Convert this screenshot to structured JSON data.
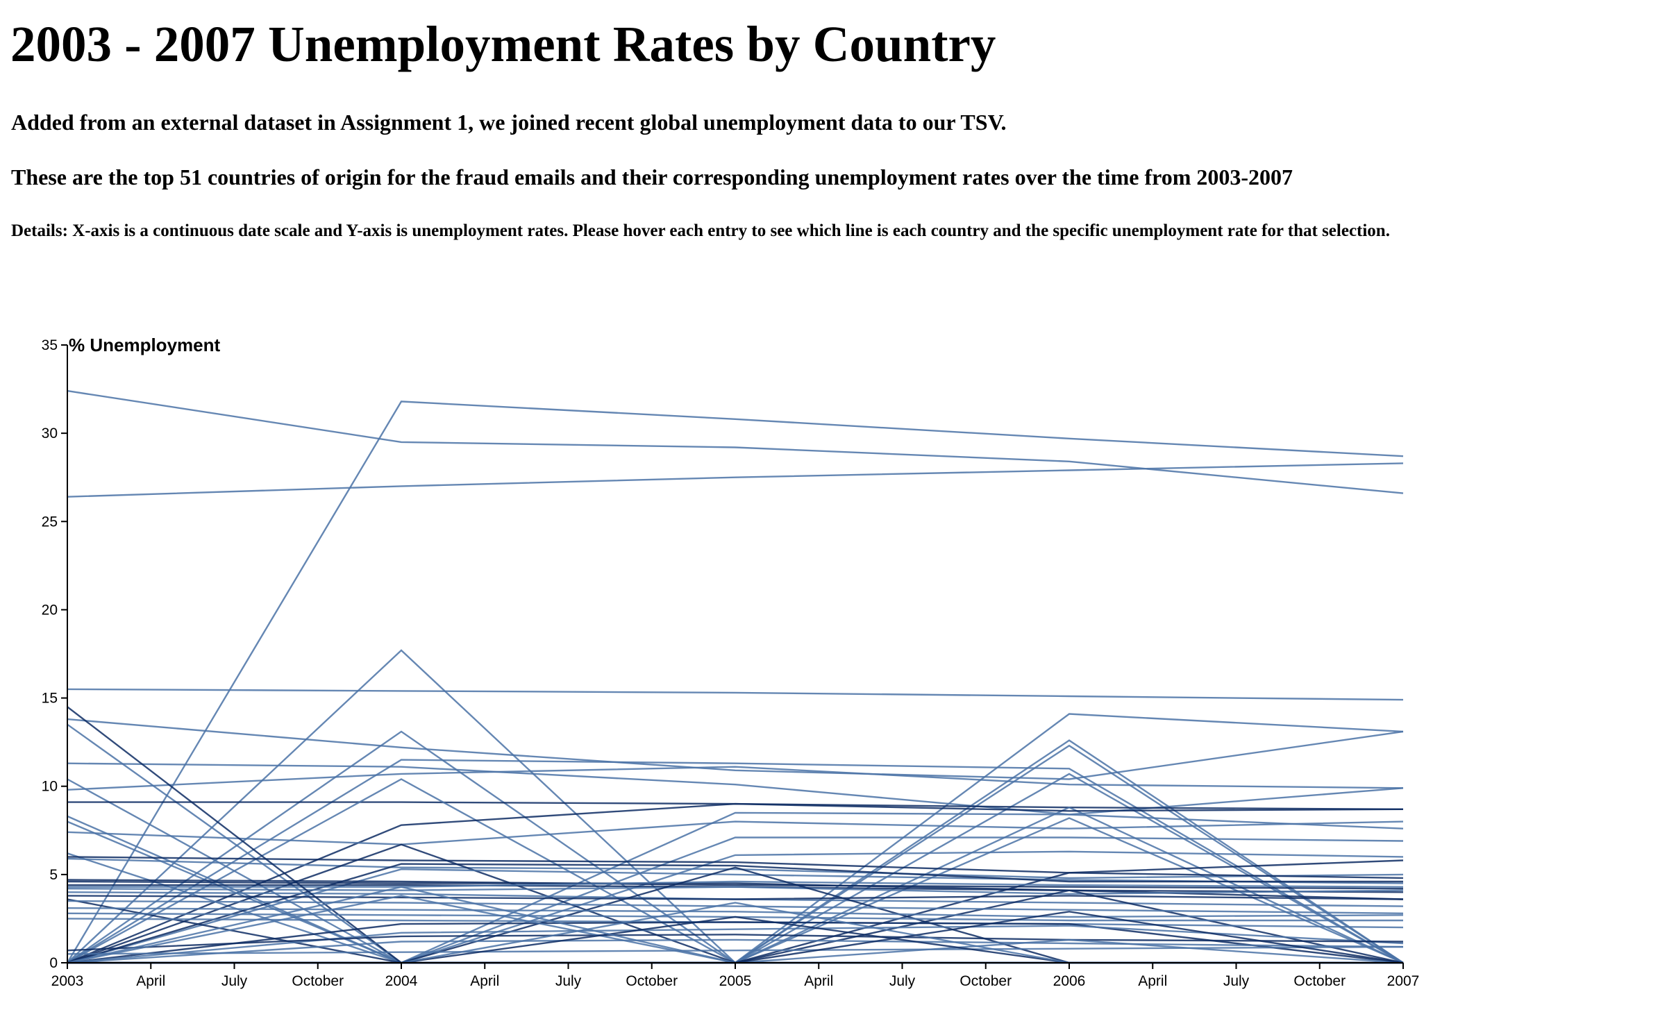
{
  "header": {
    "title": "2003 - 2007 Unemployment Rates by Country",
    "subtitle1": "Added from an external dataset in Assignment 1, we joined recent global unemployment data to our TSV.",
    "subtitle2": "These are the top 51 countries of origin for the fraud emails and their corresponding unemployment rates over the time from 2003-2007",
    "details": "Details: X-axis is a continuous date scale and Y-axis is unemployment rates. Please hover each entry to see which line is each country and the specific unemployment rate for that selection."
  },
  "chart_data": {
    "type": "line",
    "title": "",
    "xlabel": "",
    "ylabel": "% Unemployment",
    "x": [
      2003,
      2004,
      2005,
      2006,
      2007
    ],
    "x_ticks": [
      "2003",
      "April",
      "July",
      "October",
      "2004",
      "April",
      "July",
      "October",
      "2005",
      "April",
      "July",
      "October",
      "2006",
      "April",
      "July",
      "October",
      "2007"
    ],
    "xlim": [
      2003,
      2007
    ],
    "ylim": [
      0,
      35
    ],
    "y_ticks": [
      0,
      5,
      10,
      15,
      20,
      25,
      30,
      35
    ],
    "grid": false,
    "colors": {
      "line_light": "#4a72a6",
      "line_dark": "#0d2b63",
      "axis": "#000000"
    },
    "series": [
      {
        "values": [
          32.4,
          29.5,
          29.2,
          28.4,
          26.6
        ],
        "shade": "light"
      },
      {
        "values": [
          0,
          31.8,
          30.8,
          29.7,
          28.7
        ],
        "shade": "light"
      },
      {
        "values": [
          26.4,
          27.0,
          27.5,
          27.9,
          28.3
        ],
        "shade": "light"
      },
      {
        "values": [
          15.5,
          15.4,
          15.3,
          15.1,
          14.9
        ],
        "shade": "light"
      },
      {
        "values": [
          13.8,
          12.2,
          10.9,
          10.4,
          13.1
        ],
        "shade": "light"
      },
      {
        "values": [
          0,
          17.7,
          0,
          14.1,
          13.1
        ],
        "shade": "light"
      },
      {
        "values": [
          13.5,
          0,
          0,
          12.6,
          0
        ],
        "shade": "light"
      },
      {
        "values": [
          0,
          13.1,
          0,
          12.3,
          0
        ],
        "shade": "light"
      },
      {
        "values": [
          11.3,
          11.1,
          10.1,
          8.4,
          9.9
        ],
        "shade": "light"
      },
      {
        "values": [
          0,
          11.5,
          11.3,
          11.0,
          0
        ],
        "shade": "light"
      },
      {
        "values": [
          10.4,
          0,
          0,
          10.7,
          0
        ],
        "shade": "light"
      },
      {
        "values": [
          9.8,
          10.7,
          11.1,
          10.1,
          9.9
        ],
        "shade": "light"
      },
      {
        "values": [
          9.1,
          9.1,
          9.0,
          8.8,
          8.7
        ],
        "shade": "dark"
      },
      {
        "values": [
          0,
          10.4,
          0,
          8.8,
          0
        ],
        "shade": "light"
      },
      {
        "values": [
          0,
          7.8,
          9.0,
          8.6,
          8.7
        ],
        "shade": "dark"
      },
      {
        "values": [
          8.3,
          0,
          8.5,
          8.4,
          7.6
        ],
        "shade": "light"
      },
      {
        "values": [
          8.0,
          0,
          0,
          8.2,
          0
        ],
        "shade": "light"
      },
      {
        "values": [
          7.4,
          6.7,
          8.0,
          7.6,
          8.0
        ],
        "shade": "light"
      },
      {
        "values": [
          0,
          0,
          7.1,
          7.1,
          6.9
        ],
        "shade": "light"
      },
      {
        "values": [
          6.2,
          0,
          6.1,
          6.3,
          6.0
        ],
        "shade": "light"
      },
      {
        "values": [
          6.0,
          5.8,
          5.7,
          5.1,
          5.8
        ],
        "shade": "dark"
      },
      {
        "values": [
          5.9,
          5.4,
          5.3,
          4.8,
          5.0
        ],
        "shade": "light"
      },
      {
        "values": [
          0,
          6.7,
          0,
          5.1,
          4.8
        ],
        "shade": "dark"
      },
      {
        "values": [
          0,
          5.3,
          5.0,
          4.7,
          4.5
        ],
        "shade": "light"
      },
      {
        "values": [
          0,
          5.6,
          5.5,
          4.6,
          4.6
        ],
        "shade": "dark"
      },
      {
        "values": [
          4.7,
          4.6,
          4.4,
          4.3,
          4.2
        ],
        "shade": "dark"
      },
      {
        "values": [
          4.6,
          4.5,
          4.5,
          4.1,
          3.6
        ],
        "shade": "dark"
      },
      {
        "values": [
          4.4,
          4.4,
          4.3,
          4.1,
          4.0
        ],
        "shade": "dark"
      },
      {
        "values": [
          4.3,
          4.3,
          4.6,
          4.4,
          4.3
        ],
        "shade": "light"
      },
      {
        "values": [
          4.2,
          4.1,
          4.3,
          3.9,
          4.1
        ],
        "shade": "light"
      },
      {
        "values": [
          4.0,
          3.9,
          3.6,
          3.4,
          3.2
        ],
        "shade": "light"
      },
      {
        "values": [
          3.8,
          3.7,
          3.6,
          3.8,
          3.6
        ],
        "shade": "dark"
      },
      {
        "values": [
          3.6,
          0,
          0,
          4.1,
          0
        ],
        "shade": "dark"
      },
      {
        "values": [
          14.5,
          0,
          0,
          0,
          0
        ],
        "shade": "dark"
      },
      {
        "values": [
          0,
          0,
          5.4,
          0,
          0
        ],
        "shade": "dark"
      },
      {
        "values": [
          3.5,
          3.4,
          3.2,
          3.0,
          2.8
        ],
        "shade": "light"
      },
      {
        "values": [
          3.1,
          3.0,
          2.9,
          2.6,
          2.7
        ],
        "shade": "light"
      },
      {
        "values": [
          2.8,
          2.7,
          2.6,
          2.4,
          2.4
        ],
        "shade": "light"
      },
      {
        "values": [
          2.5,
          2.4,
          2.3,
          2.2,
          2.0
        ],
        "shade": "light"
      },
      {
        "values": [
          0,
          2.2,
          2.3,
          2.2,
          0
        ],
        "shade": "dark"
      },
      {
        "values": [
          0,
          1.7,
          1.9,
          2.1,
          1.1
        ],
        "shade": "light"
      },
      {
        "values": [
          0.7,
          1.5,
          1.6,
          1.3,
          1.2
        ],
        "shade": "dark"
      },
      {
        "values": [
          0,
          1.2,
          1.3,
          1.1,
          0.9
        ],
        "shade": "light"
      },
      {
        "values": [
          0.5,
          0.6,
          0.7,
          0.8,
          0.9
        ],
        "shade": "light"
      },
      {
        "values": [
          0,
          0,
          0,
          1.3,
          0
        ],
        "shade": "light"
      },
      {
        "values": [
          0,
          3.8,
          0,
          0,
          0
        ],
        "shade": "light"
      },
      {
        "values": [
          0,
          0,
          2.6,
          0,
          0
        ],
        "shade": "dark"
      },
      {
        "values": [
          0,
          4.3,
          0,
          0,
          0
        ],
        "shade": "light"
      },
      {
        "values": [
          0,
          0,
          3.4,
          0,
          0
        ],
        "shade": "light"
      },
      {
        "values": [
          0,
          0,
          0,
          2.9,
          0
        ],
        "shade": "dark"
      },
      {
        "values": [
          0,
          0,
          0,
          0,
          0
        ],
        "shade": "dark"
      }
    ]
  }
}
